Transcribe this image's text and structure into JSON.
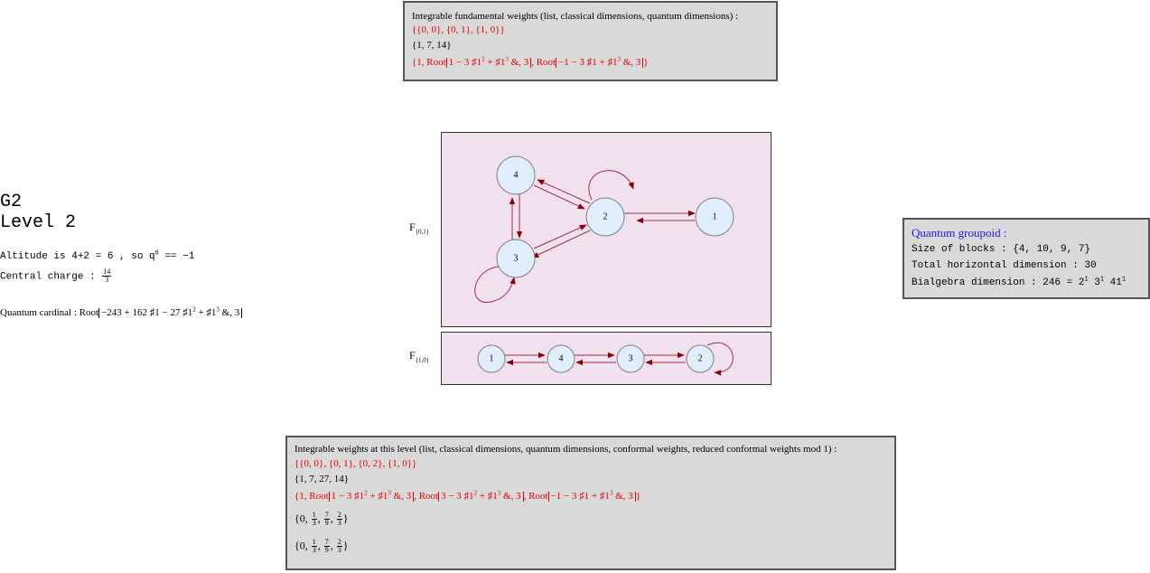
{
  "top_box": {
    "title": "Integrable fundamental weights  (list, classical dimensions, quantum dimensions) :",
    "weights": "{{0, 0}, {0, 1}, {1, 0}}",
    "classical_dims": "{1, 7, 14}",
    "q_open": "{1, Root",
    "q_expr1": "1 − 3 ♯1",
    "q_mid1": " + ♯1",
    "q_tail1": " &, 3",
    "q_sep": ", Root",
    "q_expr2": "−1 − 3 ♯1 + ♯1",
    "q_tail2": " &, 3",
    "q_close": "}"
  },
  "left": {
    "title_line1": "G2",
    "title_line2": "Level 2",
    "altitude_text": "Altitude is 4+2 = 6  , so q",
    "altitude_exp": "6",
    "altitude_eq": " == −1",
    "central_label": "Central charge : ",
    "central_num": "14",
    "central_den": "3",
    "cardinal_label": "Quantum cardinal : ",
    "cardinal_root": "Root",
    "cardinal_expr": "−243 + 162 ♯1 − 27 ♯1",
    "cardinal_mid": " + ♯1",
    "cardinal_tail": " &, 3"
  },
  "graph1": {
    "label": "F",
    "label_sub": "{0,1}",
    "nodes": [
      "4",
      "2",
      "1",
      "3"
    ]
  },
  "graph2": {
    "label": "F",
    "label_sub": "{1,0}",
    "nodes": [
      "1",
      "4",
      "3",
      "2"
    ]
  },
  "groupoid": {
    "title": "Quantum groupoid :",
    "blocks_label": "Size of blocks : ",
    "blocks_value": "{4, 10, 9, 7}",
    "hdim": "Total horizontal dimension : 30",
    "bialg_label": "Bialgebra dimension : 246 = 2",
    "bialg_e1": "1",
    "bialg_b2": " 3",
    "bialg_e2": "1",
    "bialg_b3": " 41",
    "bialg_e3": "1"
  },
  "bottom_box": {
    "title": "Integrable weights at this level  (list, classical dimensions, quantum dimensions, conformal weights, reduced conformal weights mod 1) :",
    "weights": "{{0, 0}, {0, 1}, {0, 2}, {1, 0}}",
    "classical_dims": "{1, 7, 27, 14}",
    "q_open": "{1, Root",
    "q_expr1": "1 − 3 ♯1",
    "q_mid1": " + ♯1",
    "q_tail1": " &, 3",
    "q_sep1": ", Root",
    "q_expr2": "3 − 3 ♯1",
    "q_mid2": " + ♯1",
    "q_tail2": " &, 3",
    "q_sep2": ", Root",
    "q_expr3": "−1 − 3 ♯1 + ♯1",
    "q_tail3": " &, 3",
    "q_close": "}",
    "conf_open": "{0, ",
    "f1n": "1",
    "f1d": "3",
    "f2n": "7",
    "f2d": "9",
    "f3n": "2",
    "f3d": "3",
    "conf_close": "}",
    "comma": ", "
  }
}
